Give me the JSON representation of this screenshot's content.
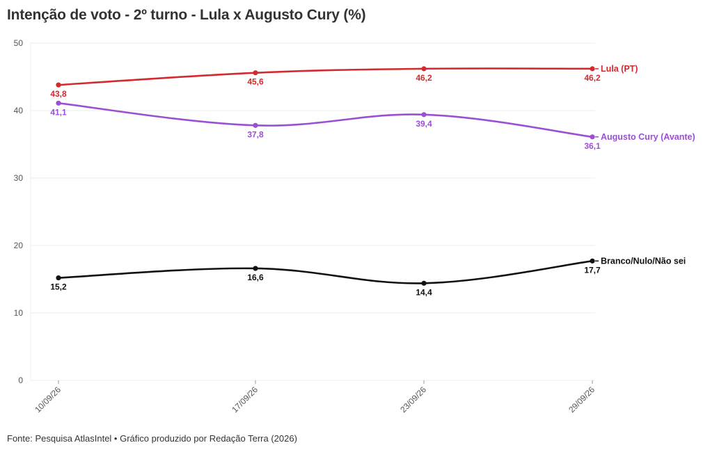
{
  "title": "Intenção de voto - 2º turno - Lula x Augusto Cury (%)",
  "footer": "Fonte: Pesquisa AtlasIntel • Gráfico produzido por Redação Terra (2026)",
  "chart_data": {
    "type": "line",
    "title": "Intenção de voto - 2º turno - Lula x Augusto Cury (%)",
    "xlabel": "",
    "ylabel": "",
    "categories": [
      "10/09/26",
      "17/09/26",
      "23/09/26",
      "29/09/26"
    ],
    "ylim": [
      0,
      50
    ],
    "yticks": [
      0,
      10,
      20,
      30,
      40,
      50
    ],
    "grid": true,
    "legend": "direct labels at right end of lines",
    "series": [
      {
        "name": "Lula (PT)",
        "color": "#d12a2f",
        "values": [
          43.8,
          45.6,
          46.2,
          46.2
        ],
        "labels": [
          "43,8",
          "45,6",
          "46,2",
          "46,2"
        ]
      },
      {
        "name": "Augusto Cury (Avante)",
        "color": "#9b4fd4",
        "values": [
          41.1,
          37.8,
          39.4,
          36.1
        ],
        "labels": [
          "41,1",
          "37,8",
          "39,4",
          "36,1"
        ]
      },
      {
        "name": "Branco/Nulo/Não sei",
        "color": "#111111",
        "values": [
          15.2,
          16.6,
          14.4,
          17.7
        ],
        "labels": [
          "15,2",
          "16,6",
          "14,4",
          "17,7"
        ]
      }
    ]
  }
}
